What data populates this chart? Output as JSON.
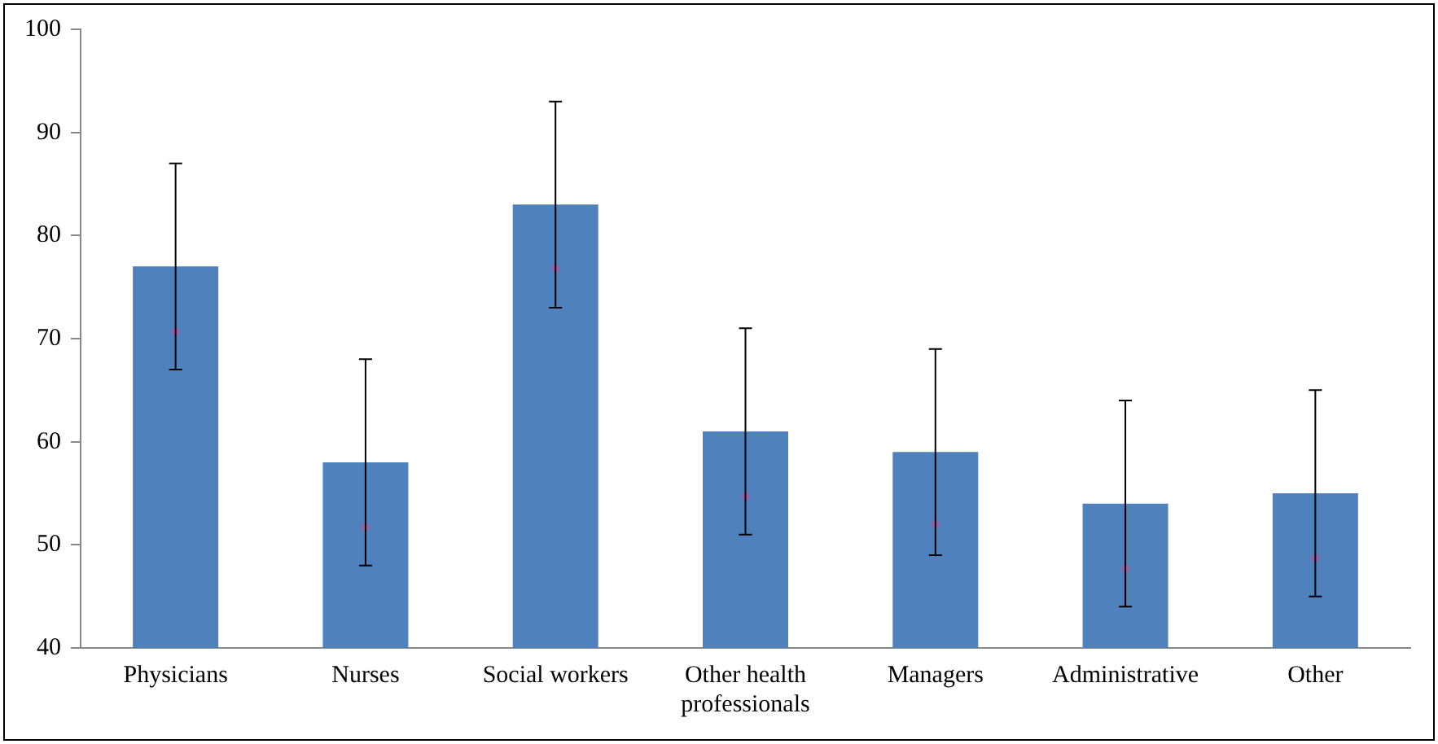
{
  "chart_data": {
    "type": "bar",
    "categories": [
      "Physicians",
      "Nurses",
      "Social workers",
      "Other health professionals",
      "Managers",
      "Administrative",
      "Other"
    ],
    "series": [
      {
        "color": "#4f81bd",
        "values": [
          77,
          58,
          83,
          61,
          59,
          54,
          55
        ],
        "errors": [
          10,
          10,
          10,
          10,
          10,
          10,
          10
        ]
      },
      {
        "type": "scatter",
        "color": "#9b5fa8",
        "x": [
          "Physicians",
          "Nurses",
          "Social workers",
          "Other health professionals",
          "Managers",
          "Administrative",
          "Other"
        ],
        "values": [
          70.7,
          51.7,
          76.8,
          54.7,
          52,
          47.7,
          48.7
        ],
        "marker": "circle"
      }
    ],
    "ylim": [
      40,
      100
    ],
    "yticks": [
      40,
      50,
      60,
      70,
      80,
      90,
      100
    ],
    "grid": false,
    "legend": false
  }
}
